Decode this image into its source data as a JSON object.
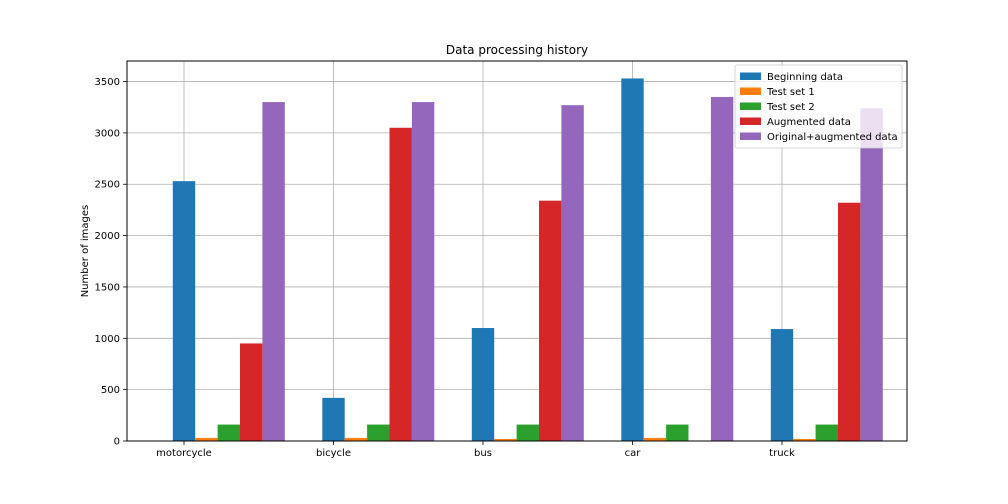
{
  "chart_data": {
    "type": "bar",
    "title": "Data processing history",
    "xlabel": "",
    "ylabel": "Number of images",
    "categories": [
      "motorcycle",
      "bicycle",
      "bus",
      "car",
      "truck"
    ],
    "ylim": [
      0,
      3700
    ],
    "yticks": [
      0,
      500,
      1000,
      1500,
      2000,
      2500,
      3000,
      3500
    ],
    "grid": true,
    "legend_position": "top-right",
    "series": [
      {
        "name": "Beginning data",
        "color": "#1f77b4",
        "values": [
          2530,
          420,
          1100,
          3530,
          1090
        ]
      },
      {
        "name": "Test set 1",
        "color": "#ff7f0e",
        "values": [
          30,
          30,
          20,
          30,
          20
        ]
      },
      {
        "name": "Test set 2",
        "color": "#2ca02c",
        "values": [
          160,
          160,
          160,
          160,
          160
        ]
      },
      {
        "name": "Augmented data",
        "color": "#d62728",
        "values": [
          950,
          3050,
          2340,
          0,
          2320
        ]
      },
      {
        "name": "Original+augmented data",
        "color": "#9467bd",
        "values": [
          3300,
          3300,
          3270,
          3350,
          3240
        ]
      }
    ]
  }
}
